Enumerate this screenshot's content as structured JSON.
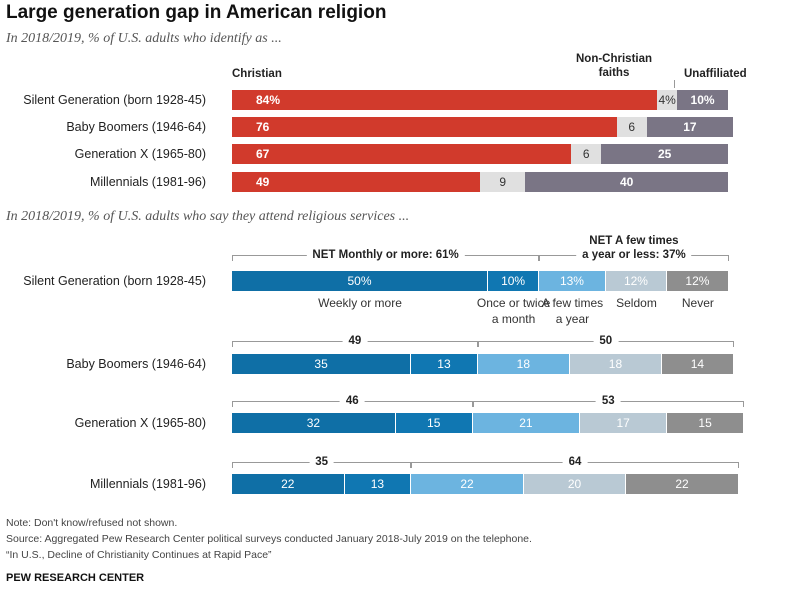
{
  "title": "Large generation gap in American religion",
  "chart_data": [
    {
      "type": "bar",
      "subtitle": "In 2018/2019, % of U.S. adults who identify as ...",
      "categories": [
        "Silent Generation (born 1928-45)",
        "Baby Boomers (1946-64)",
        "Generation X (1965-80)",
        "Millennials (1981-96)"
      ],
      "series": [
        {
          "name": "Christian",
          "values": [
            84,
            76,
            67,
            49
          ],
          "labels": [
            "84%",
            "76",
            "67",
            "49"
          ]
        },
        {
          "name": "Non-Christian faiths",
          "values": [
            4,
            6,
            6,
            9
          ],
          "labels": [
            "4%",
            "6",
            "6",
            "9"
          ]
        },
        {
          "name": "Unaffiliated",
          "values": [
            10,
            17,
            25,
            40
          ],
          "labels": [
            "10%",
            "17",
            "25",
            "40"
          ]
        }
      ],
      "colors": {
        "Christian": "#d13a2c",
        "Non-Christian faiths": "#e0e0e0",
        "Unaffiliated": "#7a7585"
      },
      "xlim": [
        0,
        100
      ],
      "stacked": true
    },
    {
      "type": "bar",
      "subtitle": "In 2018/2019, % of U.S. adults who say they attend religious services ...",
      "categories": [
        "Silent Generation (born 1928-45)",
        "Baby Boomers (1946-64)",
        "Generation X (1965-80)",
        "Millennials (1981-96)"
      ],
      "series": [
        {
          "name": "Weekly or more",
          "values": [
            50,
            35,
            32,
            22
          ],
          "labels": [
            "50%",
            "35",
            "32",
            "22"
          ]
        },
        {
          "name": "Once or twice a month",
          "values": [
            10,
            13,
            15,
            13
          ],
          "labels": [
            "10%",
            "13",
            "15",
            "13"
          ]
        },
        {
          "name": "A few times a year",
          "values": [
            13,
            18,
            21,
            22
          ],
          "labels": [
            "13%",
            "18",
            "21",
            "22"
          ]
        },
        {
          "name": "Seldom",
          "values": [
            12,
            18,
            17,
            20
          ],
          "labels": [
            "12%",
            "18",
            "17",
            "20"
          ]
        },
        {
          "name": "Never",
          "values": [
            12,
            14,
            15,
            22
          ],
          "labels": [
            "12%",
            "14",
            "15",
            "22"
          ]
        }
      ],
      "series_labels": [
        "Weekly or more",
        "Once or twice\na month",
        "A few times\na year",
        "Seldom",
        "Never"
      ],
      "colors": {
        "Weekly or more": "#0f6fa6",
        "Once or twice a month": "#1077b2",
        "A few times a year": "#6cb4e0",
        "Seldom": "#b9c9d4",
        "Never": "#8e8e8e"
      },
      "net_groups": [
        {
          "label": "NET Monthly or more: 61%",
          "values": [
            "NET Monthly or more: 61%",
            "49",
            "46",
            "35"
          ]
        },
        {
          "label": "NET A few times\na year or less: 37%",
          "values": [
            "NET A few times\na year or less: 37%",
            "50",
            "53",
            "64"
          ]
        }
      ],
      "xlim": [
        0,
        100
      ],
      "stacked": true
    }
  ],
  "notes": [
    "Note: Don't know/refused not shown.",
    "Source: Aggregated Pew Research Center political surveys conducted January 2018-July 2019 on the telephone.",
    "“In U.S., Decline of Christianity Continues at Rapid Pace”"
  ],
  "footer": "PEW RESEARCH CENTER"
}
